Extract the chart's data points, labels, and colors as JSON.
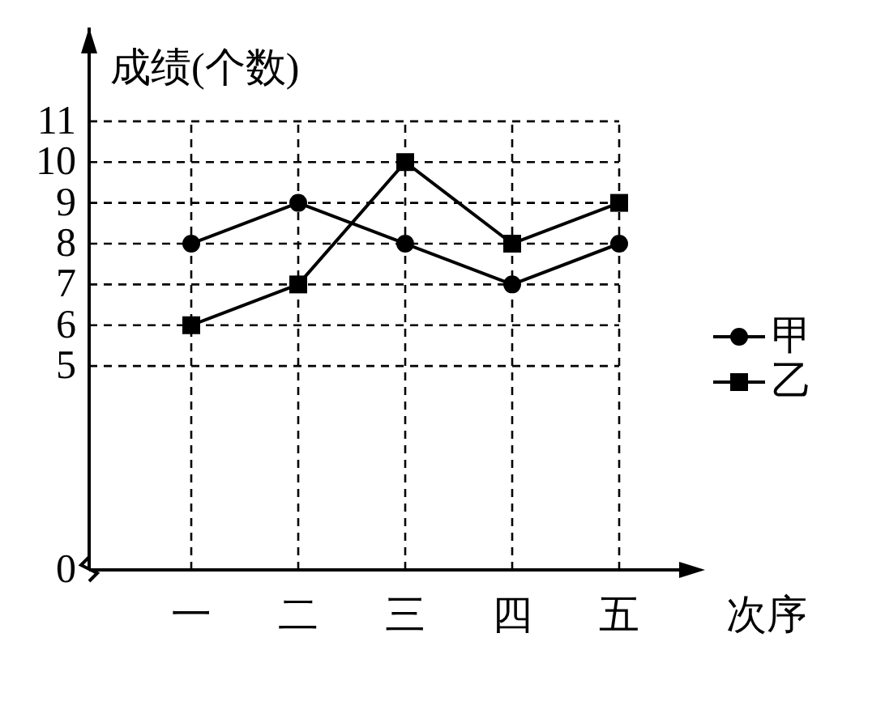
{
  "chart_data": {
    "type": "line",
    "ylabel": "成绩(个数)",
    "xlabel": "次序",
    "categories": [
      "一",
      "二",
      "三",
      "四",
      "五"
    ],
    "series": [
      {
        "name": "甲",
        "color": "#000000",
        "marker": "circle",
        "values": [
          8,
          9,
          8,
          7,
          8
        ]
      },
      {
        "name": "乙",
        "color": "#000000",
        "marker": "square",
        "values": [
          6,
          7,
          10,
          8,
          9
        ]
      }
    ],
    "ylim": [
      0,
      13.3
    ],
    "yticks": [
      0,
      5,
      6,
      7,
      8,
      9,
      10,
      11
    ],
    "grid": true,
    "legend": "right",
    "line_style": "solid"
  }
}
